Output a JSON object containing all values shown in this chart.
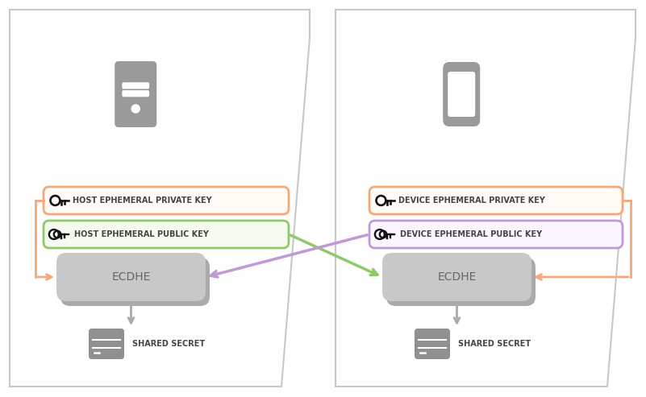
{
  "bg_color": "#ffffff",
  "panel_face": "#ffffff",
  "panel_border": "#c8c8c8",
  "icon_gray": "#9a9a9a",
  "ecdhe_face": "#c8c8c8",
  "ecdhe_shadow": "#aaaaaa",
  "orange": "#f5a878",
  "green": "#8fc96a",
  "purple": "#c09ad4",
  "text_dark": "#444444",
  "arrow_gray": "#aaaaaa",
  "storage_gray": "#909090",
  "lbl_private": "HOST EPHEMERAL PRIVATE KEY",
  "lbl_public": "HOST EPHEMERAL PUBLIC KEY",
  "lbl_d_private": "DEVICE EPHEMERAL PRIVATE KEY",
  "lbl_d_public": "DEVICE EPHEMERAL PUBLIC KEY",
  "lbl_ecdhe": "ECDHE",
  "lbl_shared": "SHARED SECRET",
  "figw": 8.01,
  "figh": 4.93,
  "dpi": 100
}
